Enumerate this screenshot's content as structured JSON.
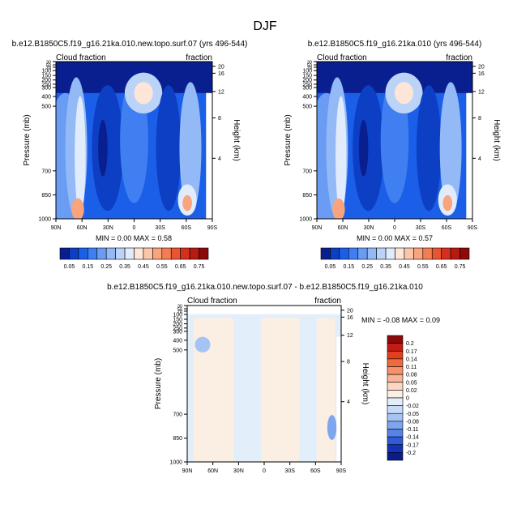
{
  "figure": {
    "title": "DJF"
  },
  "colorbar_top": {
    "labels": [
      "0.05",
      "0.15",
      "0.25",
      "0.35",
      "0.45",
      "0.55",
      "0.65",
      "0.75"
    ],
    "colors": [
      "#0a1f8f",
      "#0d3fc4",
      "#1b5fe8",
      "#3f7ff2",
      "#6a9cf4",
      "#93b9f6",
      "#bcd3f8",
      "#e0ebfb",
      "#fde6d8",
      "#fbc7ab",
      "#f9a47c",
      "#f47e53",
      "#ea5432",
      "#d5301e",
      "#b81a12",
      "#8c0a0a"
    ]
  },
  "colorbar_diff": {
    "labels": [
      "0.2",
      "0.17",
      "0.14",
      "0.11",
      "0.08",
      "0.05",
      "0.02",
      "0",
      "-0.02",
      "-0.05",
      "-0.08",
      "-0.11",
      "-0.14",
      "-0.17",
      "-0.2"
    ],
    "colors": [
      "#8c0a0a",
      "#c21c14",
      "#e0401f",
      "#ef6a3c",
      "#f6916a",
      "#f9b497",
      "#fcd6c2",
      "#fbeee2",
      "#e3eefb",
      "#c7dbf8",
      "#a5c3f4",
      "#7ea6ef",
      "#5783e6",
      "#2f5bd8",
      "#1432b8",
      "#081d8a"
    ]
  },
  "chart_data": [
    {
      "type": "heatmap",
      "title": "b.e12.B1850C5.f19_g16.21ka.010.new.topo.surf.07 (yrs 496-544)",
      "left_label": "Cloud fraction",
      "right_label": "fraction",
      "ylabel": "Pressure (mb)",
      "y2label": "Height (km)",
      "x_ticks": [
        "90N",
        "60N",
        "30N",
        "0",
        "30S",
        "60S",
        "90S"
      ],
      "y_ticks": [
        "30",
        "50",
        "70",
        "100",
        "150",
        "200",
        "250",
        "300",
        "400",
        "500",
        "700",
        "850",
        "1000"
      ],
      "y2_ticks": [
        "20",
        "16",
        "12",
        "8",
        "4"
      ],
      "stats": "MIN =   0.00  MAX =   0.58",
      "min": 0.0,
      "max": 0.58
    },
    {
      "type": "heatmap",
      "title": "b.e12.B1850C5.f19_g16.21ka.010 (yrs 496-544)",
      "left_label": "Cloud fraction",
      "right_label": "fraction",
      "ylabel": "Pressure (mb)",
      "y2label": "Height (km)",
      "x_ticks": [
        "90N",
        "60N",
        "30N",
        "0",
        "30S",
        "60S",
        "90S"
      ],
      "y_ticks": [
        "30",
        "50",
        "70",
        "100",
        "150",
        "200",
        "250",
        "300",
        "400",
        "500",
        "700",
        "850",
        "1000"
      ],
      "y2_ticks": [
        "20",
        "16",
        "12",
        "8",
        "4"
      ],
      "stats": "MIN =   0.00  MAX =   0.57",
      "min": 0.0,
      "max": 0.57
    },
    {
      "type": "heatmap",
      "title": "b.e12.B1850C5.f19_g16.21ka.010.new.topo.surf.07 - b.e12.B1850C5.f19_g16.21ka.010",
      "left_label": "Cloud fraction",
      "right_label": "fraction",
      "ylabel": "Pressure (mb)",
      "y2label": "Height (km)",
      "x_ticks": [
        "90N",
        "60N",
        "30N",
        "0",
        "30S",
        "60S",
        "90S"
      ],
      "y_ticks": [
        "30",
        "50",
        "70",
        "100",
        "150",
        "200",
        "250",
        "300",
        "400",
        "500",
        "700",
        "850",
        "1000"
      ],
      "y2_ticks": [
        "20",
        "16",
        "12",
        "8",
        "4"
      ],
      "stats": "MIN =  -0.08  MAX =   0.09",
      "min": -0.08,
      "max": 0.09
    }
  ]
}
